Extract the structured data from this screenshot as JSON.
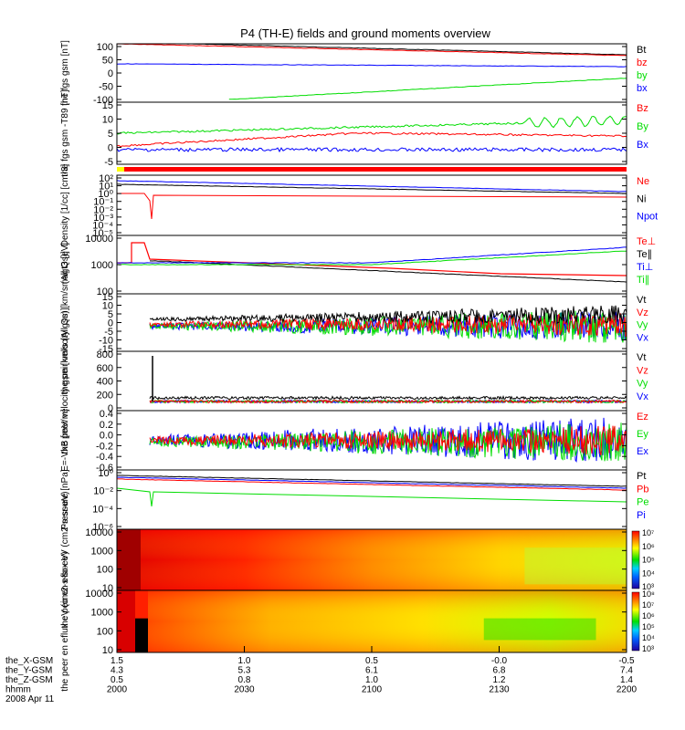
{
  "title": "P4 (TH-E) fields and ground moments overview",
  "x_axis": {
    "row_labels": [
      "the_X-GSM",
      "the_Y-GSM",
      "the_Z-GSM",
      "hhmm",
      "2008 Apr 11"
    ],
    "ticks": [
      {
        "vals": [
          "1.5",
          "4.3",
          "0.5",
          "2000"
        ]
      },
      {
        "vals": [
          "1.0",
          "5.3",
          "0.8",
          "2030"
        ]
      },
      {
        "vals": [
          "0.5",
          "6.1",
          "1.0",
          "2100"
        ]
      },
      {
        "vals": [
          "-0.0",
          "6.8",
          "1.2",
          "2130"
        ]
      },
      {
        "vals": [
          "-0.5",
          "7.4",
          "1.4",
          "2200"
        ]
      }
    ],
    "time_range_hhmm": [
      "2000",
      "2200"
    ]
  },
  "colors": {
    "black": "#000000",
    "red": "#ff0000",
    "green": "#00dd00",
    "blue": "#0000ff",
    "flag_yellow": "#ffff00"
  },
  "panels": [
    {
      "id": "fgs",
      "ylabel": "the fgs gsm [nT]",
      "yticks": [
        "100",
        "50",
        "0",
        "-50",
        "-100"
      ],
      "legend": [
        {
          "t": "Bt",
          "c": "black"
        },
        {
          "t": "bz",
          "c": "red"
        },
        {
          "t": "by",
          "c": "green"
        },
        {
          "t": "bx",
          "c": "blue"
        }
      ]
    },
    {
      "id": "fgs_t89",
      "ylabel": "the fgs gsm -T89 [nT]",
      "yticks": [
        "15",
        "10",
        "5",
        "0",
        "-5"
      ],
      "legend": [
        {
          "t": "Bz",
          "c": "red"
        },
        {
          "t": "By",
          "c": "green"
        },
        {
          "t": "Bx",
          "c": "blue"
        }
      ]
    },
    {
      "id": "density",
      "ylabel": "Density [1/cc] [cm-3]",
      "yticks": [
        "10²",
        "10¹",
        "10⁰",
        "10⁻¹",
        "10⁻²",
        "10⁻³",
        "10⁻⁴",
        "10⁻⁵"
      ],
      "legend": [
        {
          "t": "Ne",
          "c": "red"
        },
        {
          "t": "Ni",
          "c": "black"
        },
        {
          "t": "Npot",
          "c": "blue"
        }
      ]
    },
    {
      "id": "temp",
      "ylabel": "magt3 [eV]",
      "yticks": [
        "10000",
        "1000",
        "100"
      ],
      "legend": [
        {
          "t": "Te⊥",
          "c": "red"
        },
        {
          "t": "Te∥",
          "c": "black"
        },
        {
          "t": "Ti⊥",
          "c": "blue"
        },
        {
          "t": "Ti∥",
          "c": "green"
        }
      ]
    },
    {
      "id": "peir_vel",
      "ylabel": "the peir velocity gsm [km/s (All Qs)]",
      "yticks": [
        "15",
        "10",
        "5",
        "0",
        "-5",
        "-10",
        "-15"
      ],
      "legend": [
        {
          "t": "Vt",
          "c": "black"
        },
        {
          "t": "Vz",
          "c": "red"
        },
        {
          "t": "Vy",
          "c": "green"
        },
        {
          "t": "Vx",
          "c": "blue"
        }
      ]
    },
    {
      "id": "peer_vel",
      "ylabel": "the peer velocity gsm [km/s (All Qs)]",
      "yticks": [
        "800",
        "600",
        "400",
        "200",
        "0"
      ],
      "legend": [
        {
          "t": "Vt",
          "c": "black"
        },
        {
          "t": "Vz",
          "c": "red"
        },
        {
          "t": "Vy",
          "c": "green"
        },
        {
          "t": "Vx",
          "c": "blue"
        }
      ]
    },
    {
      "id": "efield",
      "ylabel": "E=-VxB [mV/m]",
      "yticks": [
        "0.4",
        "0.2",
        "0.0",
        "-0.2",
        "-0.4",
        "-0.6"
      ],
      "legend": [
        {
          "t": "Ez",
          "c": "red"
        },
        {
          "t": "Ey",
          "c": "green"
        },
        {
          "t": "Ex",
          "c": "blue"
        }
      ]
    },
    {
      "id": "pressure",
      "ylabel": "Pressure [nPa]",
      "yticks": [
        "10⁰",
        "10⁻²",
        "10⁻⁴",
        "10⁻⁶"
      ],
      "legend": [
        {
          "t": "Pt",
          "c": "black"
        },
        {
          "t": "Pb",
          "c": "red"
        },
        {
          "t": "Pe",
          "c": "green"
        },
        {
          "t": "Pi",
          "c": "blue"
        }
      ]
    },
    {
      "id": "peir_spec",
      "ylabel": "the peir en eflux eV (cm2-s-sr-eV)",
      "yticks": [
        "10000",
        "1000",
        "100",
        "10"
      ],
      "colorbar": [
        "10⁷",
        "10⁶",
        "10⁵",
        "10⁴",
        "10³"
      ]
    },
    {
      "id": "peer_spec",
      "ylabel": "the peer en eflux eV (cm2-s-sr-eV)",
      "yticks": [
        "10000",
        "1000",
        "100",
        "10"
      ],
      "colorbar": [
        "10⁸",
        "10⁷",
        "10⁶",
        "10⁵",
        "10⁴",
        "10³"
      ]
    }
  ],
  "chart_data": {
    "type": "line",
    "title": "P4 (TH-E) fields and ground moments overview",
    "x_range_hhmm": [
      "2000",
      "2200"
    ],
    "series": [
      {
        "panel": "fgs",
        "name": "Bt",
        "x": [
          0,
          0.5,
          1
        ],
        "y": [
          120,
          100,
          78
        ]
      },
      {
        "panel": "fgs",
        "name": "bz",
        "x": [
          0,
          0.5,
          1
        ],
        "y": [
          118,
          95,
          62
        ]
      },
      {
        "panel": "fgs",
        "name": "by",
        "x": [
          0.22,
          0.6,
          1
        ],
        "y": [
          -98,
          -70,
          -40
        ]
      },
      {
        "panel": "fgs",
        "name": "bx",
        "x": [
          0,
          0.5,
          1
        ],
        "y": [
          32,
          28,
          22
        ]
      },
      {
        "panel": "fgs_t89",
        "name": "Bz",
        "x": [
          0,
          0.3,
          0.6,
          1
        ],
        "y": [
          -1,
          4,
          5,
          3
        ]
      },
      {
        "panel": "fgs_t89",
        "name": "By",
        "x": [
          0,
          0.3,
          0.6,
          1
        ],
        "y": [
          4,
          5,
          7,
          10
        ]
      },
      {
        "panel": "fgs_t89",
        "name": "Bx",
        "x": [
          0,
          0.3,
          0.6,
          1
        ],
        "y": [
          -2,
          -1,
          -1,
          -2
        ]
      },
      {
        "panel": "density",
        "name": "Ne",
        "x": [
          0,
          0.05,
          0.1,
          1
        ],
        "y": [
          1,
          0.4,
          0.3,
          0.2
        ]
      },
      {
        "panel": "density",
        "name": "Ni",
        "x": [
          0,
          0.5,
          1
        ],
        "y": [
          30,
          8,
          2
        ]
      },
      {
        "panel": "density",
        "name": "Npot",
        "x": [
          0,
          0.5,
          1
        ],
        "y": [
          50,
          15,
          6
        ]
      },
      {
        "panel": "temp",
        "name": "Te⊥",
        "x": [
          0.03,
          0.08,
          0.5,
          1
        ],
        "y": [
          3000,
          600,
          300,
          90
        ]
      },
      {
        "panel": "temp",
        "name": "Te∥",
        "x": [
          0.03,
          0.08,
          0.5,
          1
        ],
        "y": [
          2500,
          550,
          280,
          70
        ]
      },
      {
        "panel": "temp",
        "name": "Ti⊥",
        "x": [
          0,
          0.5,
          1
        ],
        "y": [
          350,
          350,
          1500
        ]
      },
      {
        "panel": "temp",
        "name": "Ti∥",
        "x": [
          0,
          0.5,
          1
        ],
        "y": [
          320,
          330,
          1200
        ]
      },
      {
        "panel": "peir_vel",
        "name": "Vt",
        "x": [
          0.06,
          0.6,
          1
        ],
        "y": [
          1,
          1.5,
          5
        ]
      },
      {
        "panel": "peer_vel",
        "name": "Vt",
        "x": [
          0.06,
          0.07,
          0.08,
          1
        ],
        "y": [
          0,
          800,
          30,
          30
        ]
      },
      {
        "panel": "efield",
        "name": "Ey",
        "x": [
          0.06,
          1
        ],
        "y": [
          0,
          0
        ]
      },
      {
        "panel": "pressure",
        "name": "Pt",
        "x": [
          0,
          1
        ],
        "y": [
          2,
          0.3
        ]
      },
      {
        "panel": "pressure",
        "name": "Pe",
        "x": [
          0,
          1
        ],
        "y": [
          0.03,
          0.01
        ]
      }
    ]
  }
}
